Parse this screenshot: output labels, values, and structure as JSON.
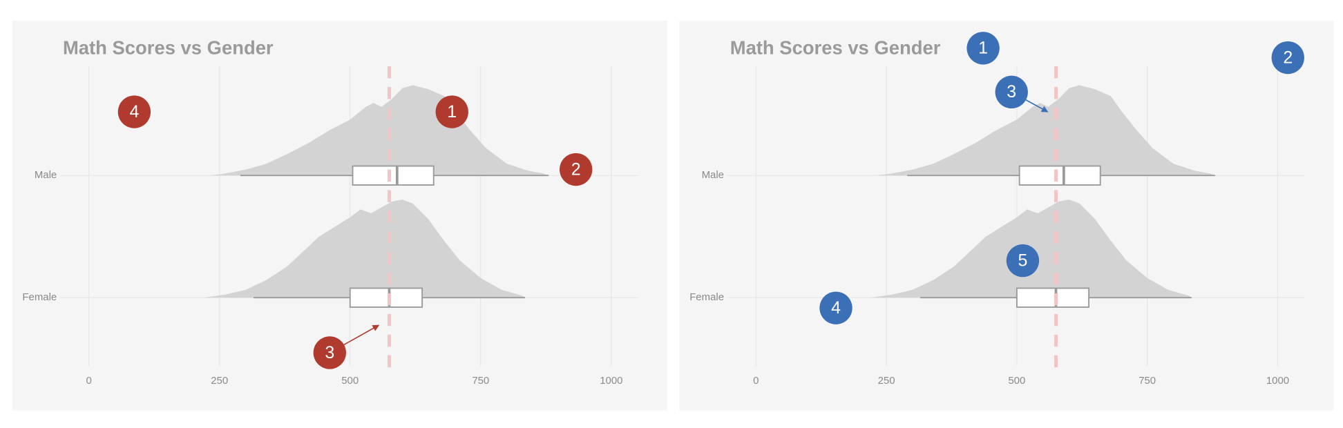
{
  "chart_data": [
    {
      "type": "ridge-box",
      "title": "Math Scores vs Gender",
      "categories": [
        "Male",
        "Female"
      ],
      "xlim": [
        -147,
        1107
      ],
      "xticks": [
        0,
        250,
        500,
        750,
        1000
      ],
      "grid": true,
      "reference_line": 575,
      "series": [
        {
          "name": "Male",
          "color": "#d3d3d3",
          "x": [
            230,
            260,
            300,
            340,
            380,
            420,
            460,
            500,
            530,
            545,
            560,
            580,
            600,
            620,
            650,
            680,
            700,
            730,
            760,
            800,
            840,
            870,
            880
          ],
          "density": [
            0,
            0.02,
            0.06,
            0.12,
            0.22,
            0.33,
            0.46,
            0.57,
            0.7,
            0.74,
            0.7,
            0.78,
            0.89,
            0.92,
            0.88,
            0.81,
            0.66,
            0.46,
            0.28,
            0.12,
            0.05,
            0.02,
            0
          ],
          "box": {
            "low": 290,
            "q1": 505,
            "median": 590,
            "q3": 660,
            "high": 880
          }
        },
        {
          "name": "Female",
          "color": "#d3d3d3",
          "x": [
            220,
            260,
            300,
            340,
            380,
            420,
            440,
            470,
            500,
            520,
            540,
            560,
            580,
            600,
            620,
            650,
            680,
            710,
            750,
            790,
            830,
            835
          ],
          "density": [
            0,
            0.03,
            0.08,
            0.18,
            0.32,
            0.52,
            0.62,
            0.72,
            0.82,
            0.9,
            0.86,
            0.92,
            0.98,
            1.0,
            0.96,
            0.8,
            0.58,
            0.38,
            0.2,
            0.08,
            0.02,
            0
          ],
          "box": {
            "low": 315,
            "q1": 500,
            "median": 575,
            "q3": 638,
            "high": 835
          }
        }
      ],
      "annotations": [
        {
          "label": "1"
        },
        {
          "label": "2"
        },
        {
          "label": "3"
        },
        {
          "label": "4"
        }
      ],
      "annotation_color": "#b03a2e"
    },
    {
      "type": "ridge-box",
      "title": "Math Scores vs Gender",
      "categories": [
        "Male",
        "Female"
      ],
      "xlim": [
        -147,
        1107
      ],
      "xticks": [
        0,
        250,
        500,
        750,
        1000
      ],
      "grid": true,
      "reference_line": 575,
      "series": [
        {
          "name": "Male",
          "color": "#d3d3d3",
          "x": [
            230,
            260,
            300,
            340,
            380,
            420,
            460,
            500,
            530,
            545,
            560,
            580,
            600,
            620,
            650,
            680,
            700,
            730,
            760,
            800,
            840,
            870,
            880
          ],
          "density": [
            0,
            0.02,
            0.06,
            0.12,
            0.22,
            0.33,
            0.46,
            0.57,
            0.7,
            0.74,
            0.7,
            0.78,
            0.89,
            0.92,
            0.88,
            0.81,
            0.66,
            0.46,
            0.28,
            0.12,
            0.05,
            0.02,
            0
          ],
          "box": {
            "low": 290,
            "q1": 505,
            "median": 590,
            "q3": 660,
            "high": 880
          }
        },
        {
          "name": "Female",
          "color": "#d3d3d3",
          "x": [
            220,
            260,
            300,
            340,
            380,
            420,
            440,
            470,
            500,
            520,
            540,
            560,
            580,
            600,
            620,
            650,
            680,
            710,
            750,
            790,
            830,
            835
          ],
          "density": [
            0,
            0.03,
            0.08,
            0.18,
            0.32,
            0.52,
            0.62,
            0.72,
            0.82,
            0.9,
            0.86,
            0.92,
            0.98,
            1.0,
            0.96,
            0.8,
            0.58,
            0.38,
            0.2,
            0.08,
            0.02,
            0
          ],
          "box": {
            "low": 315,
            "q1": 500,
            "median": 575,
            "q3": 638,
            "high": 835
          }
        }
      ],
      "annotations": [
        {
          "label": "1"
        },
        {
          "label": "2"
        },
        {
          "label": "3"
        },
        {
          "label": "4"
        },
        {
          "label": "5"
        }
      ],
      "annotation_color": "#3b6fb6"
    }
  ]
}
